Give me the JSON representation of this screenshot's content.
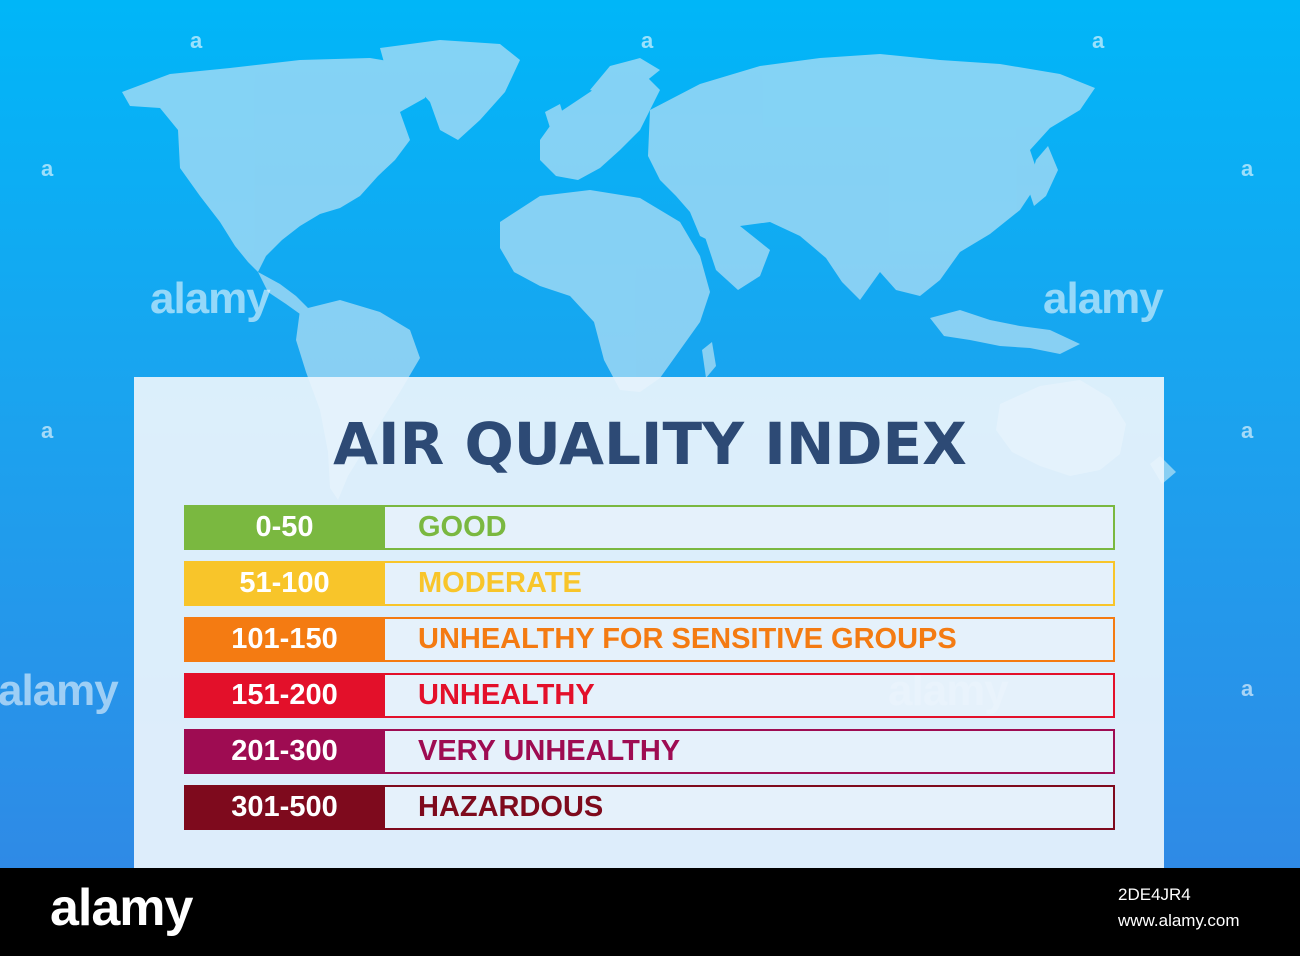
{
  "title": "AIR QUALITY INDEX",
  "levels": [
    {
      "range": "0-50",
      "label": "GOOD",
      "color": "#7ab840"
    },
    {
      "range": "51-100",
      "label": "MODERATE",
      "color": "#f8c52a"
    },
    {
      "range": "101-150",
      "label": "UNHEALTHY FOR SENSITIVE GROUPS",
      "color": "#f47b12"
    },
    {
      "range": "151-200",
      "label": "UNHEALTHY",
      "color": "#e3102a"
    },
    {
      "range": "201-300",
      "label": "VERY UNHEALTHY",
      "color": "#9e0c52"
    },
    {
      "range": "301-500",
      "label": "HAZARDOUS",
      "color": "#7e0a1d"
    }
  ],
  "watermark": {
    "text": "alamy",
    "small": "a"
  },
  "footer": {
    "logo": "alamy",
    "image_id": "2DE4JR4",
    "url": "www.alamy.com"
  },
  "colors": {
    "background_top": "#00b6f8",
    "background_bottom": "#2f8ae6",
    "title": "#2d4a75",
    "continents": "#a8dcf5"
  }
}
